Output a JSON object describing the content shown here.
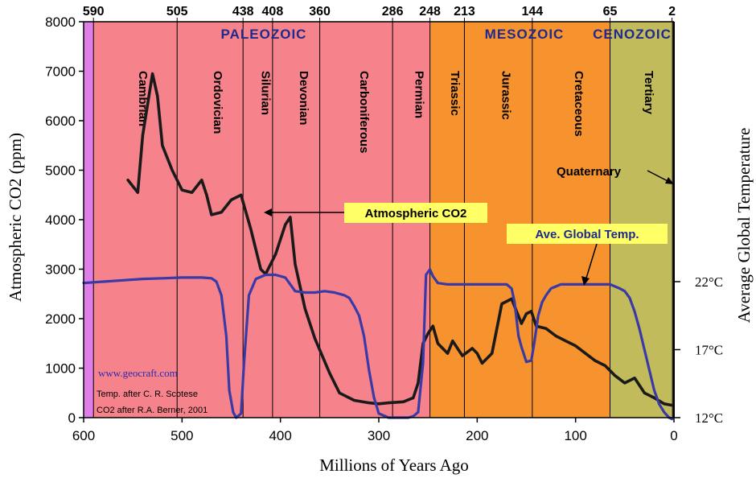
{
  "chart_data": {
    "type": "line",
    "xlabel": "Millions of Years Ago",
    "ylabel": "Atmospheric CO2 (ppm)",
    "y2label": "Average Global Temperature",
    "xlim": [
      600,
      0
    ],
    "ylim": [
      0,
      8000
    ],
    "x_ticks": [
      "600",
      "500",
      "400",
      "300",
      "200",
      "100",
      "0"
    ],
    "y_ticks": [
      "0",
      "1000",
      "2000",
      "3000",
      "4000",
      "5000",
      "6000",
      "7000",
      "8000"
    ],
    "boundary_ticks": [
      "590",
      "505",
      "438",
      "408",
      "360",
      "286",
      "248",
      "213",
      "144",
      "65",
      "2"
    ],
    "temp_ticks": [
      {
        "label": "22°C",
        "value": 22
      },
      {
        "label": "17°C",
        "value": 17
      },
      {
        "label": "12°C",
        "value": 12
      }
    ],
    "eras": [
      {
        "name": "PALEOZOIC",
        "start": 590,
        "end": 248,
        "color": "#f6838c"
      },
      {
        "name": "MESOZOIC",
        "start": 248,
        "end": 65,
        "color": "#f7932f"
      },
      {
        "name": "CENOZOIC",
        "start": 65,
        "end": 2,
        "color": "#c2bb5c"
      }
    ],
    "pre_cambrian_color": "#e07ee8",
    "periods": [
      {
        "name": "Cambrian",
        "start": 590,
        "end": 505
      },
      {
        "name": "Ordovician",
        "start": 505,
        "end": 438
      },
      {
        "name": "Silurian",
        "start": 438,
        "end": 408
      },
      {
        "name": "Devonian",
        "start": 408,
        "end": 360
      },
      {
        "name": "Carboniferous",
        "start": 360,
        "end": 286
      },
      {
        "name": "Permian",
        "start": 286,
        "end": 248
      },
      {
        "name": "Triassic",
        "start": 248,
        "end": 213
      },
      {
        "name": "Jurassic",
        "start": 213,
        "end": 144
      },
      {
        "name": "Cretaceous",
        "start": 144,
        "end": 65
      },
      {
        "name": "Tertiary",
        "start": 65,
        "end": 2
      }
    ],
    "quaternary_label": "Quaternary",
    "series": [
      {
        "name": "Atmospheric CO2",
        "color": "#1a1a1a",
        "axis": "co2",
        "x": [
          555,
          545,
          540,
          530,
          525,
          520,
          510,
          500,
          490,
          480,
          475,
          470,
          460,
          450,
          440,
          430,
          420,
          415,
          405,
          395,
          390,
          385,
          375,
          365,
          350,
          340,
          325,
          310,
          300,
          290,
          275,
          265,
          260,
          255,
          250,
          245,
          240,
          230,
          225,
          215,
          205,
          200,
          195,
          185,
          175,
          165,
          155,
          150,
          145,
          140,
          130,
          120,
          110,
          100,
          90,
          80,
          70,
          60,
          50,
          40,
          30,
          20,
          10,
          2
        ],
        "values": [
          4800,
          4550,
          5700,
          6950,
          6500,
          5500,
          5000,
          4600,
          4550,
          4800,
          4500,
          4100,
          4150,
          4400,
          4500,
          3800,
          3000,
          2900,
          3300,
          3900,
          4050,
          3100,
          2200,
          1600,
          900,
          500,
          350,
          300,
          280,
          300,
          320,
          400,
          700,
          1500,
          1700,
          1850,
          1500,
          1300,
          1550,
          1250,
          1400,
          1300,
          1100,
          1300,
          2300,
          2400,
          1900,
          2100,
          2150,
          1850,
          1800,
          1650,
          1550,
          1450,
          1300,
          1150,
          1050,
          850,
          700,
          800,
          500,
          400,
          280,
          250
        ]
      },
      {
        "name": "Ave. Global Temp.",
        "color": "#3a3aa6",
        "axis": "temp",
        "x": [
          600,
          580,
          560,
          540,
          520,
          500,
          480,
          470,
          465,
          460,
          455,
          452,
          448,
          445,
          440,
          437,
          432,
          425,
          415,
          405,
          395,
          385,
          375,
          365,
          355,
          345,
          335,
          330,
          325,
          320,
          315,
          310,
          305,
          300,
          290,
          280,
          270,
          265,
          260,
          255,
          252,
          248,
          245,
          240,
          230,
          220,
          210,
          200,
          190,
          180,
          170,
          165,
          162,
          158,
          155,
          150,
          145,
          142,
          138,
          134,
          130,
          125,
          115,
          105,
          95,
          85,
          75,
          65,
          55,
          50,
          45,
          40,
          35,
          30,
          25,
          20,
          15,
          10,
          5,
          2
        ],
        "values": [
          21.9,
          22.0,
          22.1,
          22.2,
          22.25,
          22.3,
          22.3,
          22.25,
          22.0,
          21.0,
          18.0,
          14.0,
          12.4,
          12.0,
          12.3,
          16.0,
          21.0,
          22.2,
          22.5,
          22.5,
          22.3,
          21.3,
          21.2,
          21.2,
          21.3,
          21.2,
          21.0,
          20.8,
          20.2,
          19.5,
          18.0,
          15.5,
          13.5,
          12.3,
          12.0,
          12.0,
          12.0,
          12.1,
          12.4,
          16.0,
          22.5,
          22.9,
          22.4,
          21.9,
          21.8,
          21.8,
          21.8,
          21.8,
          21.8,
          21.8,
          21.8,
          21.5,
          20.5,
          18.0,
          17.2,
          16.1,
          16.2,
          17.5,
          19.5,
          20.5,
          21.0,
          21.5,
          21.8,
          21.8,
          21.8,
          21.8,
          21.8,
          21.8,
          21.5,
          21.3,
          20.8,
          19.8,
          18.5,
          17.0,
          15.5,
          14.0,
          13.0,
          12.4,
          12.0,
          11.9
        ]
      }
    ]
  },
  "annotations": {
    "co2_label": "Atmospheric CO2",
    "temp_label": "Ave. Global Temp.",
    "site": "www.geocraft.com",
    "credit_temp": "Temp. after C. R. Scotese",
    "credit_co2": "CO2 after R.A. Berner, 2001"
  }
}
